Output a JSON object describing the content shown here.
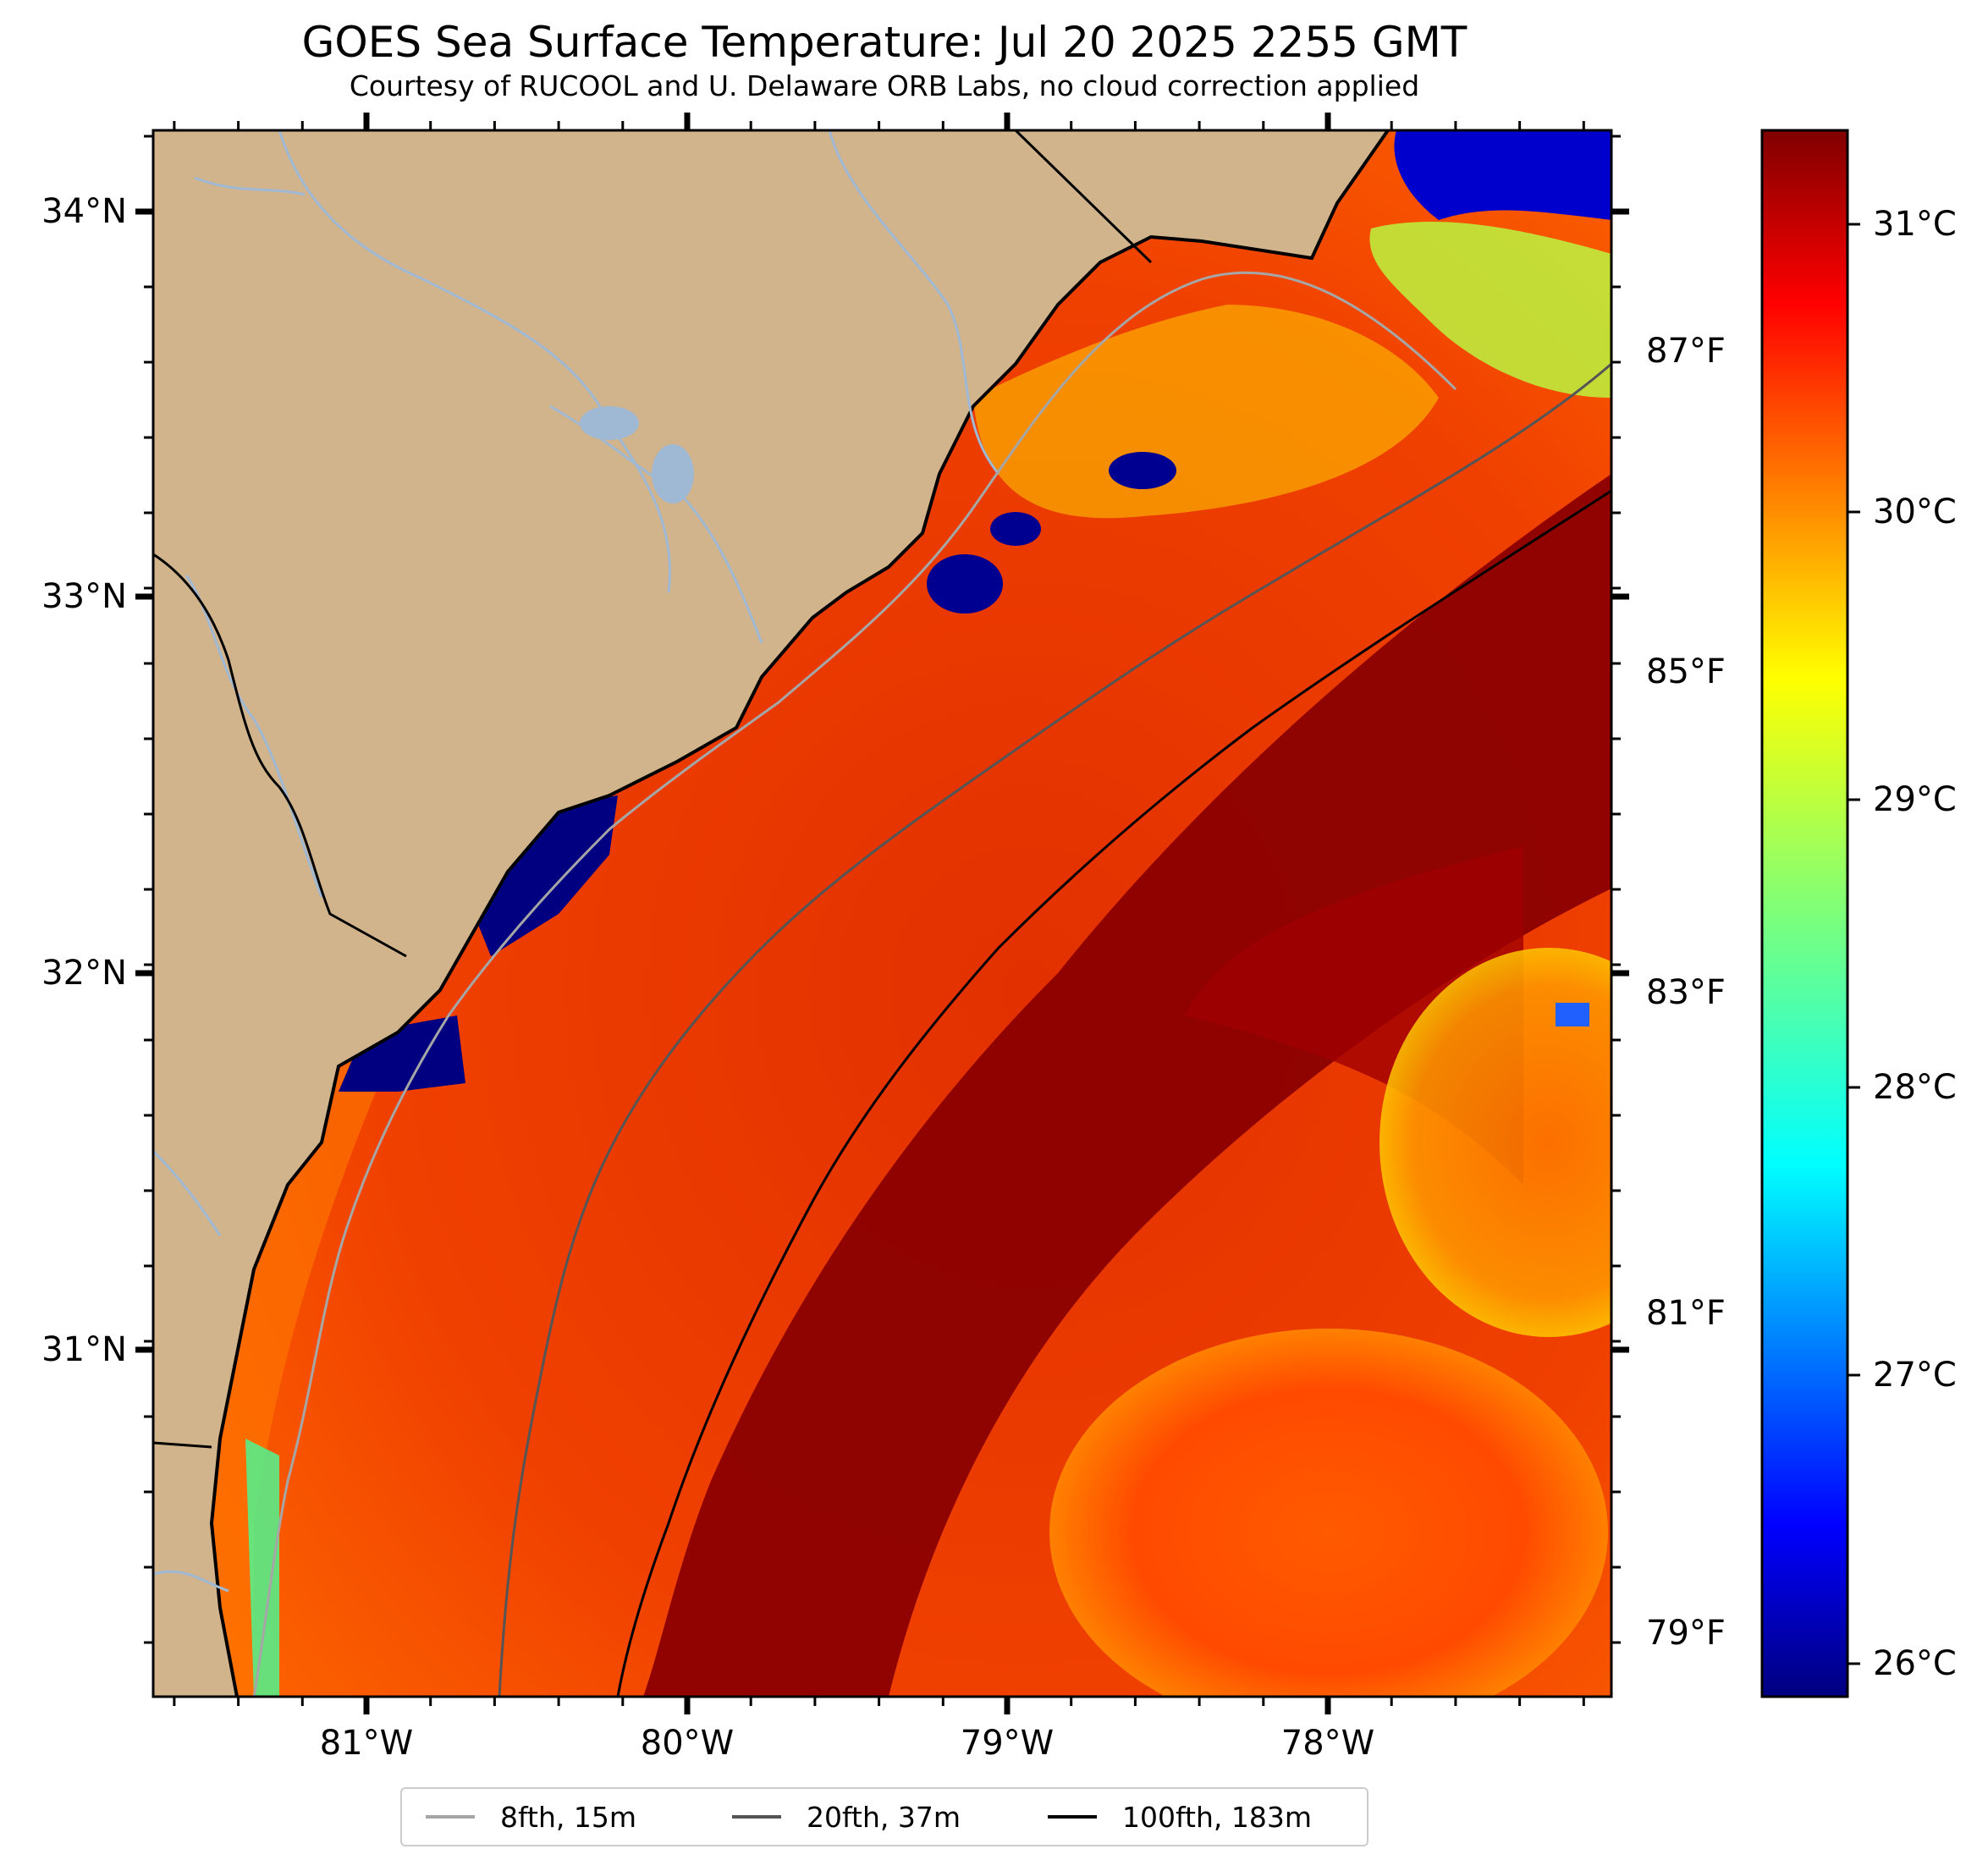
{
  "header": {
    "title": "GOES Sea Surface Temperature: Jul 20 2025 2255 GMT",
    "subtitle": "Courtesy of RUCOOL and U. Delaware ORB Labs, no cloud correction applied"
  },
  "map": {
    "latitude_labels": [
      "34°N",
      "33°N",
      "32°N",
      "31°N"
    ],
    "longitude_labels": [
      "81°W",
      "80°W",
      "79°W",
      "78°W"
    ],
    "land_color": "#d2b48c",
    "river_color": "#9fb8d3",
    "border_color": "#000000"
  },
  "colorbar": {
    "celsius_ticks": [
      "31°C",
      "30°C",
      "29°C",
      "28°C",
      "27°C",
      "26°C"
    ],
    "fahrenheit_ticks": [
      "87°F",
      "85°F",
      "83°F",
      "81°F",
      "79°F"
    ],
    "colormap": "jet"
  },
  "legend": {
    "items": [
      {
        "label": "8fth, 15m",
        "color": "#a6a6a6"
      },
      {
        "label": "20fth, 37m",
        "color": "#555555"
      },
      {
        "label": "100fth, 183m",
        "color": "#000000"
      }
    ]
  }
}
